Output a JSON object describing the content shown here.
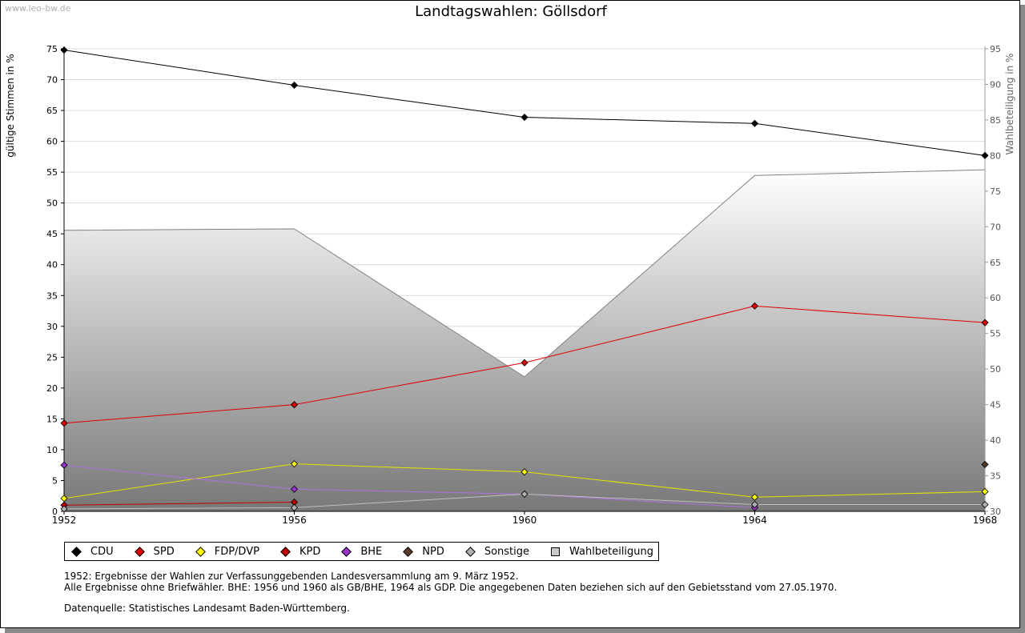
{
  "watermark": "www.leo-bw.de",
  "title": "Landtagswahlen: Göllsdorf",
  "chart_data": {
    "type": "line",
    "title": "Landtagswahlen: Göllsdorf",
    "xlabel": "",
    "ylabel": "gültige Stimmen in %",
    "y2label": "Wahlbeteiligung in %",
    "x": [
      1952,
      1956,
      1960,
      1964,
      1968
    ],
    "xticks": [
      "1952",
      "1956",
      "1960",
      "1964",
      "1968"
    ],
    "ylim": [
      0,
      75
    ],
    "yticks": [
      "0",
      "5",
      "10",
      "15",
      "20",
      "25",
      "30",
      "35",
      "40",
      "45",
      "50",
      "55",
      "60",
      "65",
      "70",
      "75"
    ],
    "y2lim": [
      30,
      95
    ],
    "y2ticks": [
      "30",
      "35",
      "40",
      "45",
      "50",
      "55",
      "60",
      "65",
      "70",
      "75",
      "80",
      "85",
      "90",
      "95"
    ],
    "area": {
      "name": "Wahlbeteiligung",
      "axis": "right",
      "values": [
        69.5,
        69.7,
        48.9,
        77.2,
        78.0
      ],
      "color": "#808080"
    },
    "series": [
      {
        "name": "CDU",
        "color": "#000000",
        "line": "#000000",
        "values": [
          74.8,
          69.1,
          63.9,
          62.9,
          57.7
        ]
      },
      {
        "name": "SPD",
        "color": "#e00000",
        "line": "#e00000",
        "values": [
          14.3,
          17.3,
          24.1,
          33.3,
          30.6
        ]
      },
      {
        "name": "FDP/DVP",
        "color": "#ffff00",
        "line": "#e6e600",
        "values": [
          2.1,
          7.7,
          6.4,
          2.3,
          3.2
        ]
      },
      {
        "name": "KPD",
        "color": "#c00000",
        "line": "#c00000",
        "values": [
          1.0,
          1.5,
          null,
          null,
          null
        ]
      },
      {
        "name": "BHE",
        "color": "#9933cc",
        "line": "#b070e0",
        "values": [
          7.5,
          3.6,
          2.8,
          0.6,
          null
        ]
      },
      {
        "name": "NPD",
        "color": "#5a3a28",
        "line": "#5a3a28",
        "values": [
          null,
          null,
          null,
          null,
          7.6
        ]
      },
      {
        "name": "Sonstige",
        "color": "#b0b0b0",
        "line": "#c0c0c0",
        "values": [
          0.4,
          0.6,
          2.8,
          1.1,
          1.1
        ]
      }
    ],
    "legend_position": "bottom-left",
    "grid": true
  },
  "legend": [
    {
      "label": "CDU",
      "color": "#000000",
      "shape": "diamond"
    },
    {
      "label": "SPD",
      "color": "#e00000",
      "shape": "diamond"
    },
    {
      "label": "FDP/DVP",
      "color": "#ffff00",
      "shape": "diamond"
    },
    {
      "label": "KPD",
      "color": "#c00000",
      "shape": "diamond"
    },
    {
      "label": "BHE",
      "color": "#9933cc",
      "shape": "diamond"
    },
    {
      "label": "NPD",
      "color": "#5a3a28",
      "shape": "diamond"
    },
    {
      "label": "Sonstige",
      "color": "#b0b0b0",
      "shape": "diamond"
    },
    {
      "label": "Wahlbeteiligung",
      "color": "#c8c8c8",
      "shape": "square"
    }
  ],
  "notes": {
    "line1": "1952: Ergebnisse der Wahlen zur Verfassunggebenden Landesversammlung am 9. März 1952.",
    "line2": "Alle Ergebnisse ohne Briefwähler. BHE: 1956 und 1960 als GB/BHE, 1964 als GDP. Die angegebenen Daten beziehen sich auf den Gebietsstand vom 27.05.1970.",
    "source": "Datenquelle: Statistisches Landesamt Baden-Württemberg."
  }
}
